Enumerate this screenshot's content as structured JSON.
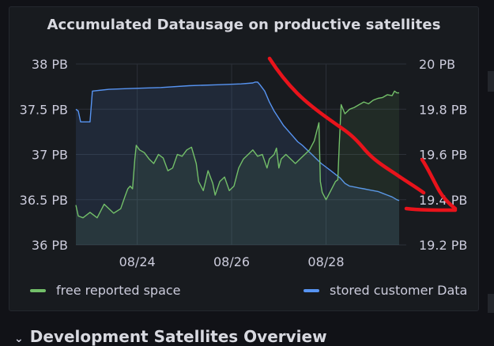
{
  "panel": {
    "title": "Accumulated Datausage on productive satellites"
  },
  "row": {
    "title": "Development Satellites Overview"
  },
  "chart_data": {
    "type": "line",
    "title": "Accumulated Datausage on productive satellites",
    "x_axis": {
      "ticks": [
        "08/24",
        "08/26",
        "08/28"
      ],
      "range_days": [
        0,
        7.0
      ],
      "tick_days": [
        1.3,
        3.3,
        5.3
      ]
    },
    "y_left": {
      "ticks": [
        "38 PB",
        "37.5 PB",
        "37 PB",
        "36.5 PB",
        "36 PB"
      ],
      "tick_values": [
        38,
        37.5,
        37,
        36.5,
        36
      ],
      "range": [
        36,
        38
      ],
      "unit": "PB"
    },
    "y_right": {
      "ticks": [
        "20 PB",
        "19.8 PB",
        "19.6 PB",
        "19.4 PB",
        "19.2 PB"
      ],
      "tick_values": [
        20,
        19.8,
        19.6,
        19.4,
        19.2
      ],
      "range": [
        19.2,
        20
      ],
      "unit": "PB"
    },
    "grid": true,
    "legend_placement": "bottom",
    "series": [
      {
        "name": "free reported space",
        "color": "#73bf69",
        "axis": "left",
        "points": [
          [
            0,
            36.44
          ],
          [
            0.05,
            36.32
          ],
          [
            0.15,
            36.3
          ],
          [
            0.3,
            36.36
          ],
          [
            0.45,
            36.3
          ],
          [
            0.6,
            36.45
          ],
          [
            0.8,
            36.35
          ],
          [
            0.95,
            36.4
          ],
          [
            1.05,
            36.55
          ],
          [
            1.1,
            36.62
          ],
          [
            1.15,
            36.65
          ],
          [
            1.2,
            36.62
          ],
          [
            1.25,
            36.95
          ],
          [
            1.28,
            37.1
          ],
          [
            1.35,
            37.05
          ],
          [
            1.45,
            37.02
          ],
          [
            1.55,
            36.95
          ],
          [
            1.65,
            36.9
          ],
          [
            1.75,
            37.0
          ],
          [
            1.85,
            36.96
          ],
          [
            1.95,
            36.82
          ],
          [
            2.05,
            36.85
          ],
          [
            2.15,
            37.0
          ],
          [
            2.25,
            36.98
          ],
          [
            2.35,
            37.05
          ],
          [
            2.45,
            37.08
          ],
          [
            2.55,
            36.9
          ],
          [
            2.6,
            36.7
          ],
          [
            2.7,
            36.6
          ],
          [
            2.8,
            36.82
          ],
          [
            2.9,
            36.68
          ],
          [
            2.95,
            36.55
          ],
          [
            3.05,
            36.7
          ],
          [
            3.15,
            36.75
          ],
          [
            3.25,
            36.6
          ],
          [
            3.35,
            36.65
          ],
          [
            3.45,
            36.85
          ],
          [
            3.55,
            36.95
          ],
          [
            3.65,
            37.0
          ],
          [
            3.75,
            37.05
          ],
          [
            3.85,
            36.98
          ],
          [
            3.95,
            37.0
          ],
          [
            4.05,
            36.85
          ],
          [
            4.1,
            36.95
          ],
          [
            4.2,
            37.0
          ],
          [
            4.25,
            37.07
          ],
          [
            4.3,
            36.85
          ],
          [
            4.35,
            36.95
          ],
          [
            4.45,
            37.0
          ],
          [
            4.55,
            36.95
          ],
          [
            4.65,
            36.9
          ],
          [
            4.75,
            36.95
          ],
          [
            4.85,
            37.0
          ],
          [
            4.95,
            37.05
          ],
          [
            5.05,
            37.15
          ],
          [
            5.1,
            37.25
          ],
          [
            5.15,
            37.35
          ],
          [
            5.18,
            36.7
          ],
          [
            5.22,
            36.58
          ],
          [
            5.3,
            36.5
          ],
          [
            5.4,
            36.6
          ],
          [
            5.5,
            36.7
          ],
          [
            5.55,
            36.72
          ],
          [
            5.58,
            37.1
          ],
          [
            5.62,
            37.55
          ],
          [
            5.7,
            37.45
          ],
          [
            5.8,
            37.5
          ],
          [
            5.9,
            37.52
          ],
          [
            6.0,
            37.55
          ],
          [
            6.1,
            37.58
          ],
          [
            6.2,
            37.56
          ],
          [
            6.3,
            37.6
          ],
          [
            6.4,
            37.62
          ],
          [
            6.5,
            37.63
          ],
          [
            6.6,
            37.66
          ],
          [
            6.7,
            37.65
          ],
          [
            6.75,
            37.7
          ],
          [
            6.8,
            37.68
          ],
          [
            6.85,
            37.68
          ]
        ]
      },
      {
        "name": "stored customer Data",
        "color": "#5794f2",
        "axis": "left",
        "points": [
          [
            0,
            37.5
          ],
          [
            0.05,
            37.48
          ],
          [
            0.1,
            37.36
          ],
          [
            0.2,
            37.36
          ],
          [
            0.3,
            37.36
          ],
          [
            0.35,
            37.7
          ],
          [
            0.7,
            37.72
          ],
          [
            1.2,
            37.73
          ],
          [
            1.8,
            37.74
          ],
          [
            2.4,
            37.76
          ],
          [
            3.0,
            37.77
          ],
          [
            3.5,
            37.78
          ],
          [
            3.75,
            37.79
          ],
          [
            3.8,
            37.8
          ],
          [
            3.85,
            37.8
          ],
          [
            3.9,
            37.77
          ],
          [
            4.0,
            37.7
          ],
          [
            4.1,
            37.58
          ],
          [
            4.2,
            37.48
          ],
          [
            4.3,
            37.4
          ],
          [
            4.4,
            37.32
          ],
          [
            4.5,
            37.26
          ],
          [
            4.6,
            37.2
          ],
          [
            4.7,
            37.14
          ],
          [
            4.8,
            37.1
          ],
          [
            4.9,
            37.05
          ],
          [
            5.0,
            37.0
          ],
          [
            5.1,
            36.95
          ],
          [
            5.2,
            36.9
          ],
          [
            5.3,
            36.86
          ],
          [
            5.4,
            36.82
          ],
          [
            5.5,
            36.78
          ],
          [
            5.6,
            36.74
          ],
          [
            5.7,
            36.68
          ],
          [
            5.8,
            36.65
          ],
          [
            5.9,
            36.64
          ],
          [
            6.0,
            36.63
          ],
          [
            6.1,
            36.62
          ],
          [
            6.2,
            36.61
          ],
          [
            6.3,
            36.6
          ],
          [
            6.4,
            36.59
          ],
          [
            6.5,
            36.57
          ],
          [
            6.6,
            36.55
          ],
          [
            6.7,
            36.53
          ],
          [
            6.8,
            36.5
          ],
          [
            6.85,
            36.49
          ]
        ]
      }
    ]
  }
}
